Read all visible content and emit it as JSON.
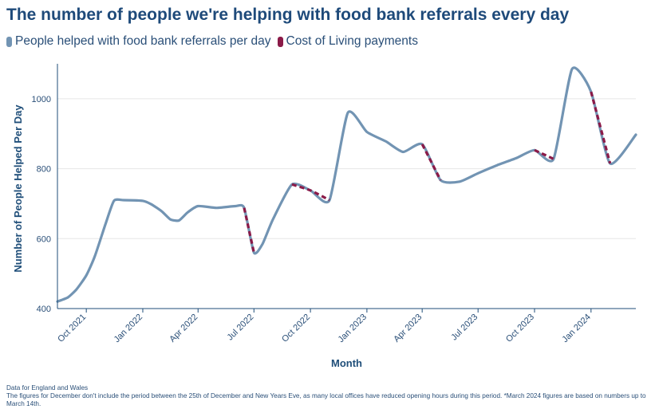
{
  "title": "The number of people we're helping with food bank referrals every day",
  "legend": {
    "series1": "People helped with food bank referrals per day",
    "series2": "Cost of Living payments"
  },
  "colors": {
    "series1": "#7294b3",
    "series2": "#8b1a48",
    "grid": "#e6e6e6",
    "axis": "#1f4e79"
  },
  "footnotes": [
    "Data for England and Wales",
    "The figures for December don't include the period between the 25th of December and New Years Eve, as many local offices have reduced opening hours during this period. *March 2024 figures are based on numbers up to March 14th."
  ],
  "chart_data": {
    "type": "line",
    "title": "The number of people we're helping with food bank referrals every day",
    "xlabel": "Month",
    "ylabel": "Number of People Helped Per Day",
    "ylim": [
      400,
      1100
    ],
    "yticks": [
      400,
      600,
      800,
      1000
    ],
    "xlim": [
      "2021-08-15",
      "2024-03-14"
    ],
    "xticks": [
      {
        "date": "2021-10-01",
        "label": "Oct 2021"
      },
      {
        "date": "2022-01-01",
        "label": "Jan 2022"
      },
      {
        "date": "2022-04-01",
        "label": "Apr 2022"
      },
      {
        "date": "2022-07-01",
        "label": "Jul 2022"
      },
      {
        "date": "2022-10-01",
        "label": "Oct 2022"
      },
      {
        "date": "2023-01-01",
        "label": "Jan 2023"
      },
      {
        "date": "2023-04-01",
        "label": "Apr 2023"
      },
      {
        "date": "2023-07-01",
        "label": "Jul 2023"
      },
      {
        "date": "2023-10-01",
        "label": "Oct 2023"
      },
      {
        "date": "2024-01-01",
        "label": "Jan 2024"
      }
    ],
    "grid": true,
    "series": [
      {
        "name": "People helped with food bank referrals per day",
        "points": [
          {
            "x": "2021-08-15",
            "y": 420
          },
          {
            "x": "2021-09-01",
            "y": 432
          },
          {
            "x": "2021-09-15",
            "y": 455
          },
          {
            "x": "2021-10-01",
            "y": 495
          },
          {
            "x": "2021-10-15",
            "y": 550
          },
          {
            "x": "2021-11-01",
            "y": 640
          },
          {
            "x": "2021-11-15",
            "y": 708
          },
          {
            "x": "2021-12-01",
            "y": 710
          },
          {
            "x": "2022-01-01",
            "y": 708
          },
          {
            "x": "2022-01-15",
            "y": 698
          },
          {
            "x": "2022-02-01",
            "y": 678
          },
          {
            "x": "2022-02-15",
            "y": 655
          },
          {
            "x": "2022-03-01",
            "y": 652
          },
          {
            "x": "2022-03-15",
            "y": 675
          },
          {
            "x": "2022-04-01",
            "y": 693
          },
          {
            "x": "2022-05-01",
            "y": 688
          },
          {
            "x": "2022-06-01",
            "y": 693
          },
          {
            "x": "2022-06-15",
            "y": 688
          },
          {
            "x": "2022-07-01",
            "y": 560
          },
          {
            "x": "2022-07-15",
            "y": 585
          },
          {
            "x": "2022-08-01",
            "y": 655
          },
          {
            "x": "2022-09-01",
            "y": 755
          },
          {
            "x": "2022-10-01",
            "y": 738
          },
          {
            "x": "2022-11-01",
            "y": 710
          },
          {
            "x": "2022-12-01",
            "y": 960
          },
          {
            "x": "2023-01-01",
            "y": 905
          },
          {
            "x": "2023-02-01",
            "y": 878
          },
          {
            "x": "2023-03-01",
            "y": 848
          },
          {
            "x": "2023-04-01",
            "y": 870
          },
          {
            "x": "2023-05-01",
            "y": 767
          },
          {
            "x": "2023-06-01",
            "y": 763
          },
          {
            "x": "2023-07-01",
            "y": 787
          },
          {
            "x": "2023-08-01",
            "y": 810
          },
          {
            "x": "2023-09-01",
            "y": 830
          },
          {
            "x": "2023-10-01",
            "y": 853
          },
          {
            "x": "2023-11-01",
            "y": 828
          },
          {
            "x": "2023-12-01",
            "y": 1085
          },
          {
            "x": "2024-01-01",
            "y": 1020
          },
          {
            "x": "2024-02-01",
            "y": 815
          },
          {
            "x": "2024-03-14",
            "y": 897
          }
        ]
      },
      {
        "name": "Cost of Living payments",
        "dashed": true,
        "segments": [
          [
            {
              "x": "2022-06-15",
              "y": 688
            },
            {
              "x": "2022-07-01",
              "y": 560
            }
          ],
          [
            {
              "x": "2022-09-01",
              "y": 755
            },
            {
              "x": "2022-10-01",
              "y": 738
            },
            {
              "x": "2022-11-01",
              "y": 710
            }
          ],
          [
            {
              "x": "2023-04-01",
              "y": 870
            },
            {
              "x": "2023-05-01",
              "y": 767
            }
          ],
          [
            {
              "x": "2023-10-01",
              "y": 853
            },
            {
              "x": "2023-11-01",
              "y": 828
            }
          ],
          [
            {
              "x": "2024-01-01",
              "y": 1020
            },
            {
              "x": "2024-02-01",
              "y": 815
            }
          ]
        ]
      }
    ]
  }
}
